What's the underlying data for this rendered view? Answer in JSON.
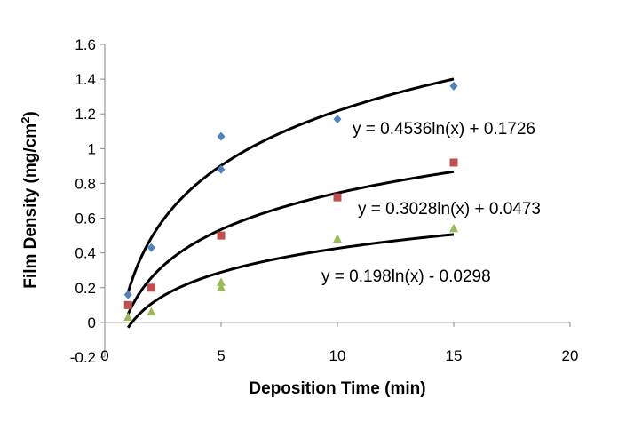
{
  "chart_data": {
    "type": "scatter",
    "title": "",
    "xlabel": "Deposition Time (min)",
    "ylabel_main": "Film Density (mg/cm",
    "ylabel_sup": "2",
    "ylabel_end": ")",
    "xlim": [
      0,
      20
    ],
    "ylim": [
      -0.2,
      1.6
    ],
    "xticks": [
      0,
      5,
      10,
      15,
      20
    ],
    "yticks": [
      -0.2,
      0,
      0.2,
      0.4,
      0.6,
      0.8,
      1,
      1.2,
      1.4,
      1.6
    ],
    "grid": false,
    "legend": "none",
    "series": [
      {
        "marker": "diamond",
        "color": "#4F81BD",
        "x": [
          1,
          2,
          5,
          5,
          10,
          15
        ],
        "y": [
          0.16,
          0.43,
          1.07,
          0.88,
          1.17,
          1.36
        ],
        "trendline": {
          "type": "log",
          "a": 0.4536,
          "b": 0.1726,
          "equation": "y = 0.4536ln(x) + 0.1726"
        }
      },
      {
        "marker": "square",
        "color": "#C0504D",
        "x": [
          1,
          2,
          5,
          10,
          15
        ],
        "y": [
          0.1,
          0.2,
          0.5,
          0.72,
          0.92
        ],
        "trendline": {
          "type": "log",
          "a": 0.3028,
          "b": 0.0473,
          "equation": "y = 0.3028ln(x) + 0.0473"
        }
      },
      {
        "marker": "triangle",
        "color": "#9BBB59",
        "x": [
          1,
          2,
          5,
          5,
          10,
          15
        ],
        "y": [
          0.03,
          0.06,
          0.2,
          0.23,
          0.48,
          0.54
        ],
        "trendline": {
          "type": "log",
          "a": 0.198,
          "b": -0.0298,
          "equation": "y = 0.198ln(x) - 0.0298"
        }
      }
    ],
    "trendline_color": "#000000"
  }
}
